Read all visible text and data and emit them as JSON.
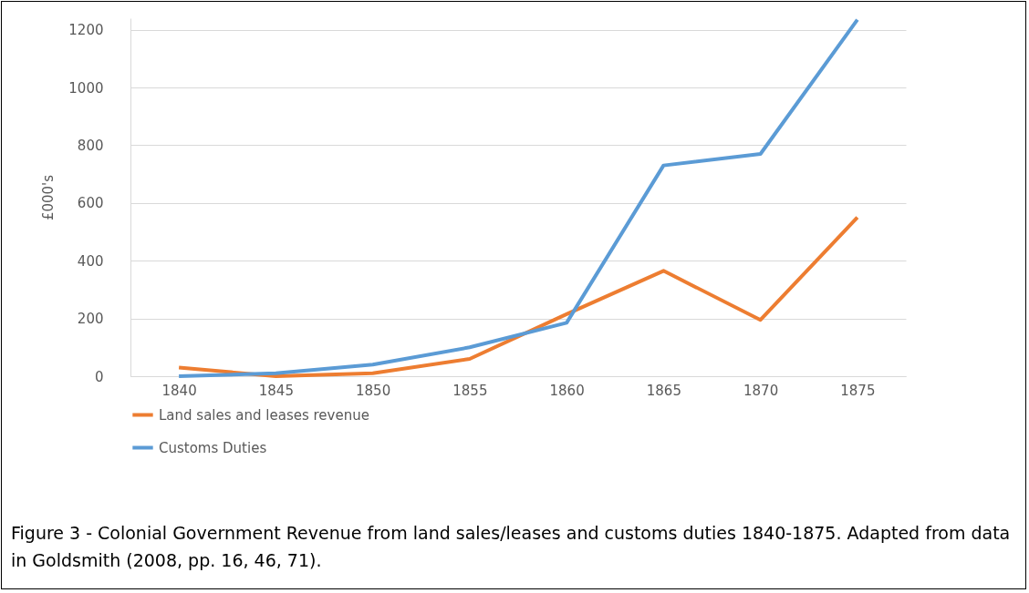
{
  "chart_data": {
    "type": "line",
    "ylabel": "£000's",
    "categories": [
      "1840",
      "1845",
      "1850",
      "1855",
      "1860",
      "1865",
      "1870",
      "1875"
    ],
    "series": [
      {
        "name": "Land sales and leases revenue",
        "color": "#ed7d31",
        "values": [
          30,
          0,
          10,
          60,
          215,
          365,
          195,
          550
        ]
      },
      {
        "name": "Customs Duties",
        "color": "#5b9bd5",
        "values": [
          0,
          10,
          40,
          100,
          185,
          730,
          770,
          1235
        ]
      }
    ],
    "ylim": [
      0,
      1240
    ],
    "yticks": [
      0,
      200,
      400,
      600,
      800,
      1000,
      1200
    ],
    "grid": "y",
    "legend": "bottom",
    "marker": "none",
    "line_style": "solid",
    "annotations": [
      "Figure 3 - Colonial Government Revenue from land sales/leases and customs duties 1840-1875. Adapted from data in Goldsmith (2008, pp. 16, 46, 71)."
    ]
  }
}
